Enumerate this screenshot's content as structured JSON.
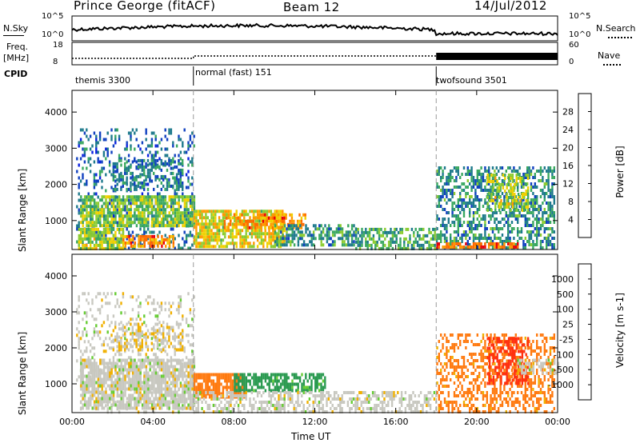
{
  "header": {
    "station": "Prince George (fitACF)",
    "beam": "Beam 12",
    "date": "14/Jul/2012"
  },
  "top_panels": {
    "nsky_label": "N.Sky",
    "nsearch_label": "N.Search",
    "left_ticks_top": [
      "10^5",
      "10^0"
    ],
    "right_ticks_top": [
      "10^5",
      "10^0"
    ],
    "freq_label": "Freq.",
    "freq_unit": "[MHz]",
    "freq_ticks": [
      "18",
      "8"
    ],
    "nave_label": "Nave",
    "nave_ticks": [
      "60",
      "0"
    ],
    "cpid_label": "CPID",
    "cpid_segments": [
      {
        "label": "themis 3300",
        "start_hour": 0,
        "end_hour": 6
      },
      {
        "label": "normal (fast) 151",
        "start_hour": 6,
        "end_hour": 18
      },
      {
        "label": "twofsound 3501",
        "start_hour": 18,
        "end_hour": 24
      }
    ]
  },
  "x_axis": {
    "title": "Time UT",
    "ticks": [
      "00:00",
      "04:00",
      "08:00",
      "12:00",
      "16:00",
      "20:00",
      "00:00"
    ],
    "tick_hours": [
      0,
      4,
      8,
      12,
      16,
      20,
      24
    ]
  },
  "colorbars": {
    "power": {
      "title": "Power [dB]",
      "labels": [
        "28",
        "24",
        "20",
        "16",
        "12",
        "8",
        "4"
      ],
      "colors": [
        "#e8000a",
        "#ff6a00",
        "#ff9900",
        "#f0d000",
        "#8ccc30",
        "#3aa860",
        "#1e7a8c",
        "#1040c0",
        "#0a20e0"
      ]
    },
    "velocity": {
      "title": "Velocity [m s-1]",
      "labels": [
        "1000",
        "500",
        "100",
        "25",
        "-25",
        "-100",
        "-500",
        "-1000"
      ],
      "colors": [
        "#2040c0",
        "#4a8ac0",
        "#2a9a50",
        "#66cc33",
        "#c8c8c0",
        "#f0b000",
        "#ff7a10",
        "#ff3010",
        "#e00000"
      ]
    }
  },
  "chart_data": [
    {
      "type": "heatmap",
      "name": "power",
      "title": "",
      "xlabel": "Time UT",
      "ylabel": "Slant Range [km]",
      "xlim": [
        0,
        24
      ],
      "ylim": [
        200,
        4600
      ],
      "yticks": [
        1000,
        2000,
        3000,
        4000
      ],
      "value_label": "Power [dB]",
      "value_range": [
        0,
        30
      ],
      "regions": [
        {
          "t0": 0.2,
          "t1": 6.0,
          "r0": 250,
          "r1": 3550,
          "level": 6,
          "density": 0.25
        },
        {
          "t0": 0.4,
          "t1": 6.0,
          "r0": 900,
          "r1": 1700,
          "level": 14,
          "density": 0.8
        },
        {
          "t0": 0.3,
          "t1": 2.5,
          "r0": 250,
          "r1": 800,
          "level": 16,
          "density": 0.8
        },
        {
          "t0": 2.5,
          "t1": 5.0,
          "r0": 300,
          "r1": 600,
          "level": 24,
          "density": 0.7
        },
        {
          "t0": 2.0,
          "t1": 5.5,
          "r0": 1900,
          "r1": 2700,
          "level": 8,
          "density": 0.45
        },
        {
          "t0": 6.0,
          "t1": 10.5,
          "r0": 300,
          "r1": 1300,
          "level": 18,
          "density": 0.75
        },
        {
          "t0": 7.5,
          "t1": 11.5,
          "r0": 800,
          "r1": 1200,
          "level": 24,
          "density": 0.55
        },
        {
          "t0": 10.0,
          "t1": 14.0,
          "r0": 300,
          "r1": 900,
          "level": 10,
          "density": 0.55
        },
        {
          "t0": 14.0,
          "t1": 18.0,
          "r0": 250,
          "r1": 800,
          "level": 11,
          "density": 0.6
        },
        {
          "t0": 18.0,
          "t1": 23.8,
          "r0": 250,
          "r1": 2500,
          "level": 9,
          "density": 0.5
        },
        {
          "t0": 18.0,
          "t1": 22.0,
          "r0": 250,
          "r1": 400,
          "level": 26,
          "density": 0.7
        },
        {
          "t0": 20.5,
          "t1": 22.5,
          "r0": 1300,
          "r1": 2300,
          "level": 16,
          "density": 0.55
        }
      ]
    },
    {
      "type": "heatmap",
      "name": "velocity",
      "title": "",
      "xlabel": "Time UT",
      "ylabel": "Slant Range [km]",
      "xlim": [
        0,
        24
      ],
      "ylim": [
        200,
        4600
      ],
      "yticks": [
        1000,
        2000,
        3000,
        4000
      ],
      "value_label": "Velocity [m s-1]",
      "value_range": [
        -1000,
        1000
      ],
      "regions": [
        {
          "t0": 0.2,
          "t1": 6.0,
          "r0": 250,
          "r1": 3550,
          "level": 0,
          "density": 0.2
        },
        {
          "t0": 0.4,
          "t1": 6.0,
          "r0": 300,
          "r1": 1700,
          "level": 0,
          "density": 0.8
        },
        {
          "t0": 2.0,
          "t1": 5.5,
          "r0": 1900,
          "r1": 2700,
          "level": -20,
          "density": 0.45
        },
        {
          "t0": 6.0,
          "t1": 8.5,
          "r0": 600,
          "r1": 1300,
          "level": -200,
          "density": 0.8
        },
        {
          "t0": 8.0,
          "t1": 12.5,
          "r0": 800,
          "r1": 1300,
          "level": 150,
          "density": 0.7
        },
        {
          "t0": 6.0,
          "t1": 18.0,
          "r0": 250,
          "r1": 800,
          "level": 0,
          "density": 0.5
        },
        {
          "t0": 18.0,
          "t1": 23.8,
          "r0": 250,
          "r1": 2400,
          "level": -150,
          "density": 0.45
        },
        {
          "t0": 20.5,
          "t1": 22.5,
          "r0": 1000,
          "r1": 2300,
          "level": -700,
          "density": 0.5
        },
        {
          "t0": 22.0,
          "t1": 24.0,
          "r0": 1300,
          "r1": 1700,
          "level": 0,
          "density": 0.55
        }
      ]
    }
  ]
}
